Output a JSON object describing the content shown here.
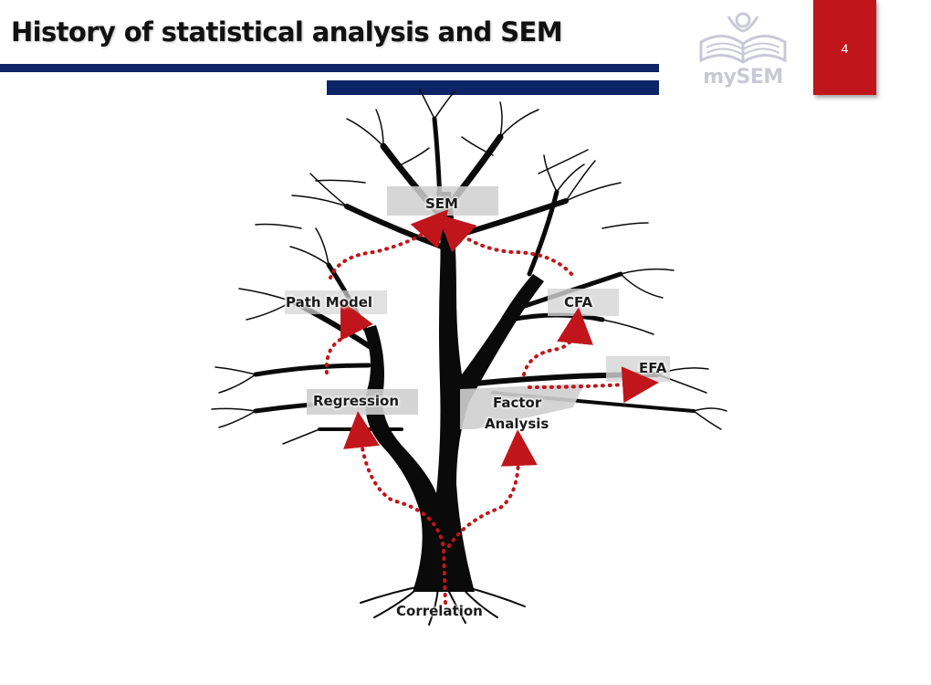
{
  "header": {
    "title": "History of statistical analysis and SEM",
    "logo_text": "mySEM",
    "page_number": "4"
  },
  "colors": {
    "accent_navy": "#0d2466",
    "page_box_red": "#c0151b",
    "arrow_red": "#c0151b",
    "tree": "#0a0a0a",
    "logo_grey": "#c9c9d6"
  },
  "diagram": {
    "nodes": {
      "sem": "SEM",
      "path_model": "Path Model",
      "cfa": "CFA",
      "efa": "EFA",
      "regression": "Regression",
      "factor_analysis_line1": "Factor",
      "factor_analysis_line2": "Analysis",
      "correlation": "Correlation"
    },
    "edges": [
      {
        "from": "Correlation",
        "to": "Regression"
      },
      {
        "from": "Correlation",
        "to": "Factor Analysis"
      },
      {
        "from": "Regression",
        "to": "Path Model"
      },
      {
        "from": "Path Model",
        "to": "SEM"
      },
      {
        "from": "Factor Analysis",
        "to": "CFA"
      },
      {
        "from": "Factor Analysis",
        "to": "EFA"
      },
      {
        "from": "CFA",
        "to": "SEM"
      }
    ]
  }
}
